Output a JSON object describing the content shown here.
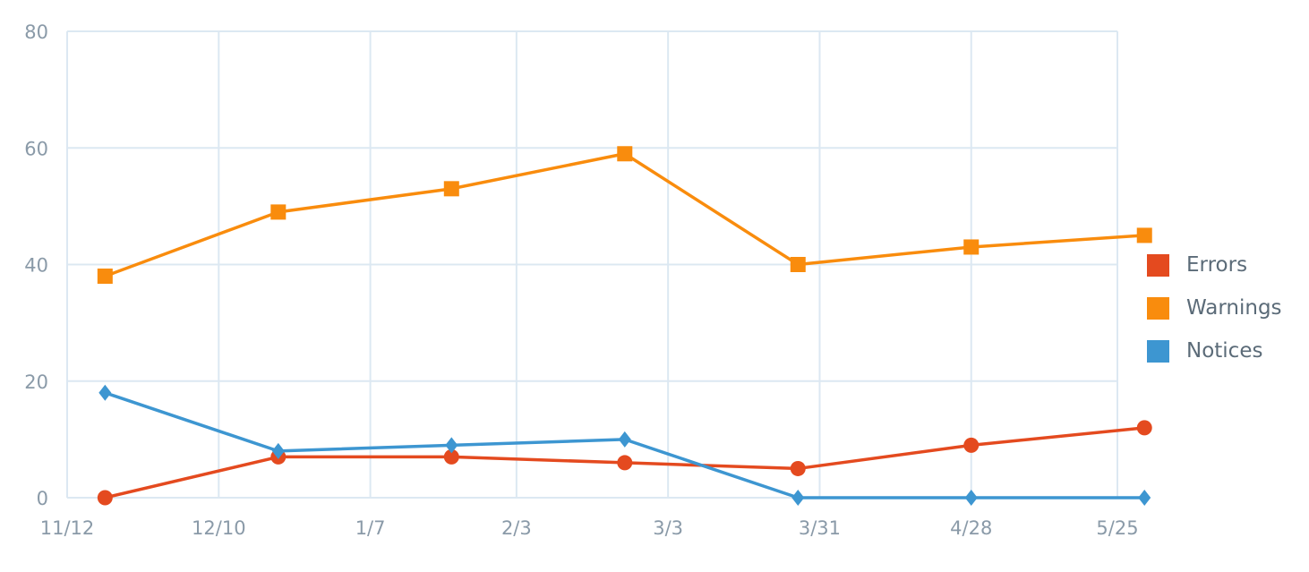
{
  "chart_data": {
    "type": "line",
    "x_tick_labels": [
      "11/12",
      "12/10",
      "1/7",
      "2/3",
      "3/3",
      "3/31",
      "4/28",
      "5/25"
    ],
    "x_points": [
      "11/19",
      "12/21",
      "1/22",
      "2/23",
      "3/27",
      "4/28",
      "5/30"
    ],
    "y_tick_labels": [
      "0",
      "20",
      "40",
      "60",
      "80"
    ],
    "ylim": [
      0,
      80
    ],
    "grid": true,
    "legend_position": "right",
    "series": [
      {
        "name": "Errors",
        "color": "#e44a1f",
        "marker": "circle",
        "values": [
          0,
          7,
          7,
          6,
          5,
          9,
          12
        ]
      },
      {
        "name": "Warnings",
        "color": "#f98c0d",
        "marker": "square",
        "values": [
          38,
          49,
          53,
          59,
          40,
          43,
          45
        ]
      },
      {
        "name": "Notices",
        "color": "#3d96d1",
        "marker": "diamond",
        "values": [
          18,
          8,
          9,
          10,
          0,
          0,
          0
        ]
      }
    ]
  }
}
